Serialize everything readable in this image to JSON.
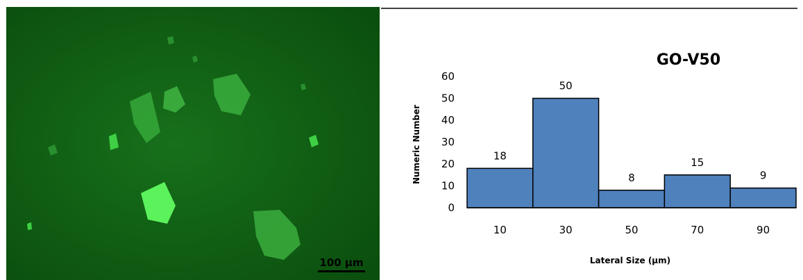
{
  "micrograph": {
    "scale_bar_label": "100 µm"
  },
  "chart_data": {
    "type": "bar",
    "title": "GO-V50",
    "xlabel": "Lateral Size (µm)",
    "ylabel": "Numeric Number",
    "categories": [
      "10",
      "30",
      "50",
      "70",
      "90"
    ],
    "values": [
      18,
      50,
      8,
      15,
      9
    ],
    "ylim": [
      0,
      60
    ],
    "yticks": [
      0,
      10,
      20,
      30,
      40,
      50,
      60
    ],
    "bar_color": "#4f81bd",
    "grid": false,
    "data_labels": true
  }
}
